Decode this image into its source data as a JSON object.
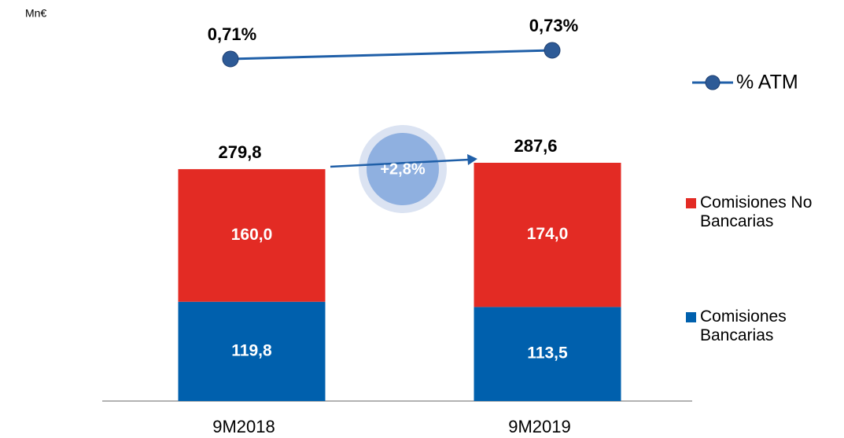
{
  "chart_data": {
    "type": "bar",
    "unit": "Mn€",
    "categories": [
      "9M2018",
      "9M2019"
    ],
    "series": [
      {
        "name": "Comisiones Bancarias",
        "color": "#0060ad",
        "values": [
          119.8,
          113.5
        ],
        "value_labels": [
          "119,8",
          "113,5"
        ]
      },
      {
        "name": "Comisiones No Bancarias",
        "color": "#e32b24",
        "values": [
          160.0,
          174.0
        ],
        "value_labels": [
          "160,0",
          "174,0"
        ]
      }
    ],
    "totals": [
      279.8,
      287.6
    ],
    "total_labels": [
      "279,8",
      "287,6"
    ],
    "line": {
      "name": "% ATM",
      "color": "#1f5fa8",
      "values": [
        0.71,
        0.73
      ],
      "value_labels": [
        "0,71%",
        "0,73%"
      ]
    },
    "annotation": "+2,8%"
  }
}
